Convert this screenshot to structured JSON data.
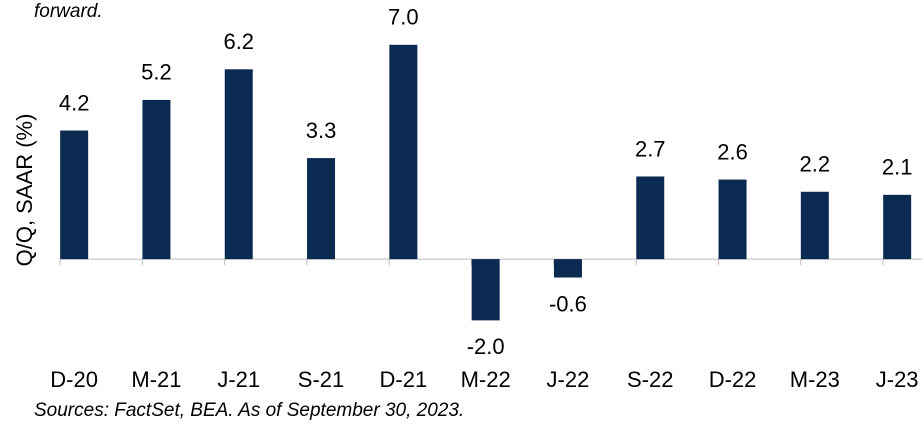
{
  "chart_data": {
    "type": "bar",
    "note_top": "forward.",
    "ylabel": "Q/Q, SAAR (%)",
    "source": "Sources: FactSet, BEA. As of September 30, 2023.",
    "categories": [
      "D-20",
      "M-21",
      "J-21",
      "S-21",
      "D-21",
      "M-22",
      "J-22",
      "S-22",
      "D-22",
      "M-23",
      "J-23"
    ],
    "values": [
      4.2,
      5.2,
      6.2,
      3.3,
      7.0,
      -2.0,
      -0.6,
      2.7,
      2.6,
      2.2,
      2.1
    ],
    "value_labels": [
      "4.2",
      "5.2",
      "6.2",
      "3.3",
      "7.0",
      "-2.0",
      "-0.6",
      "2.7",
      "2.6",
      "2.2",
      "2.1"
    ],
    "color": "#0b2a52",
    "ylim": [
      -3,
      7.5
    ]
  }
}
